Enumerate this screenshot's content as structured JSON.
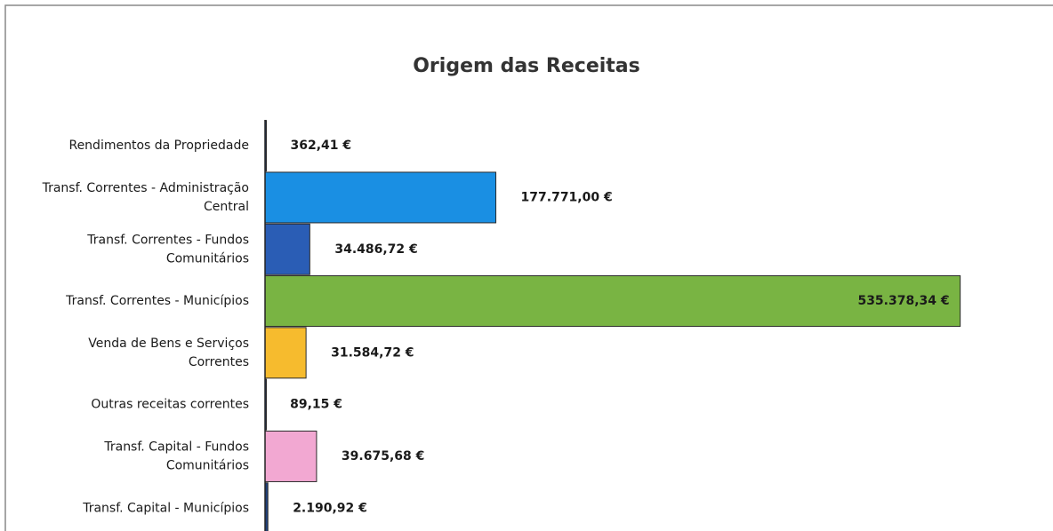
{
  "chart_data": {
    "type": "barh",
    "title": "Origem das Receitas",
    "categories": [
      "Rendimentos da Propriedade",
      "Transf. Correntes - Administração Central",
      "Transf. Correntes - Fundos Comunitários",
      "Transf. Correntes - Municípios",
      "Venda de Bens e Serviços Correntes",
      "Outras receitas correntes",
      "Transf. Capital - Fundos Comunitários",
      "Transf. Capital - Municípios"
    ],
    "values": [
      362.41,
      177771.0,
      34486.72,
      535378.34,
      31584.72,
      89.15,
      39675.68,
      2190.92
    ],
    "value_labels": [
      "362,41 €",
      "177.771,00 €",
      "34.486,72 €",
      "535.378,34 €",
      "31.584,72 €",
      "89,15 €",
      "39.675,68 €",
      "2.190,92 €"
    ],
    "colors": [
      "#1f3f7a",
      "#1a8fe3",
      "#2a5db5",
      "#79b443",
      "#f6bb2e",
      "#1f3f7a",
      "#f2a8d2",
      "#1f3f7a"
    ],
    "xlim": [
      0,
      600000
    ]
  }
}
